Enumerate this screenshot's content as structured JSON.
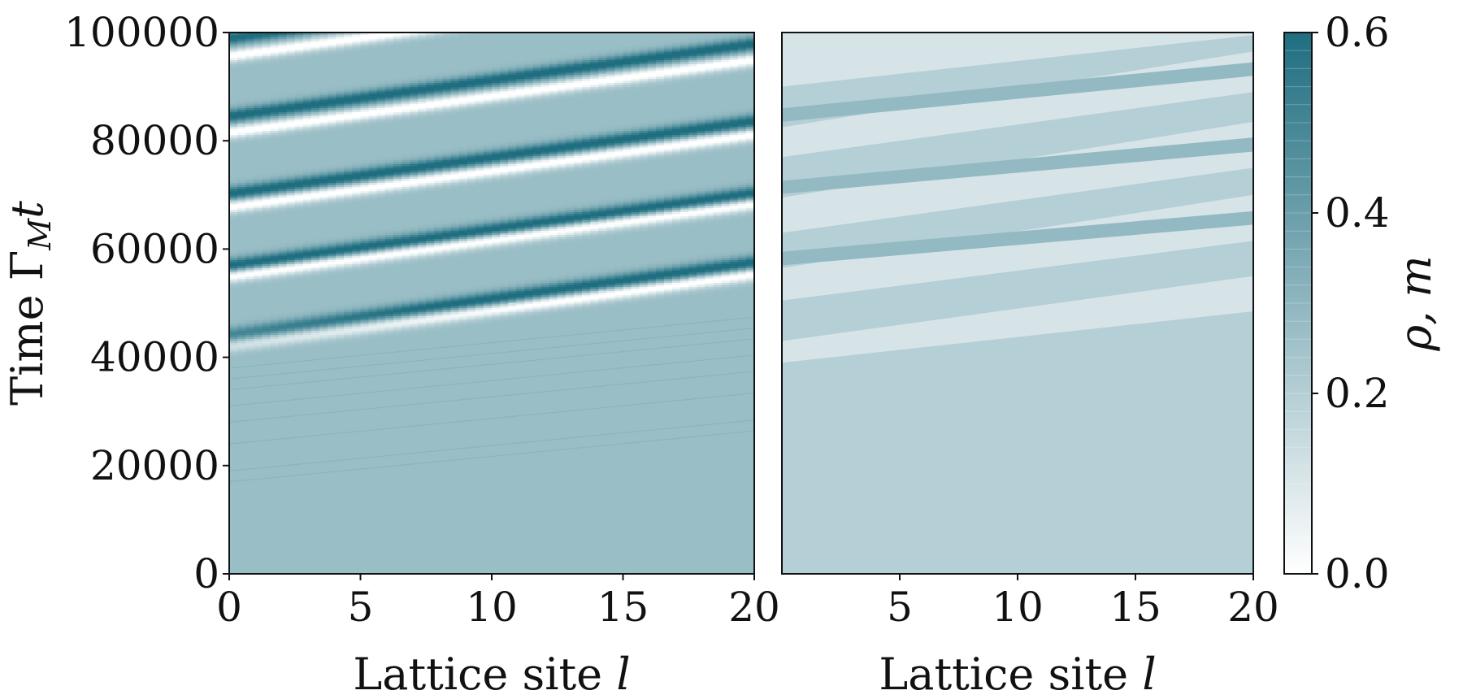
{
  "chart_data": [
    {
      "type": "heatmap",
      "panel": "left",
      "xlabel": "Lattice site l",
      "ylabel": "Time Γ_M t",
      "xlim": [
        0,
        20
      ],
      "ylim": [
        0,
        100000
      ],
      "x_ticks": [
        "0",
        "5",
        "10",
        "15",
        "20"
      ],
      "y_ticks": [
        "0",
        "20000",
        "40000",
        "60000",
        "80000",
        "100000"
      ],
      "baseline_value": 0.27,
      "onset_time": 40000,
      "stripe_slope_per_site": 670,
      "high_stripes_t_at_l0": [
        44200,
        57000,
        70300,
        84600,
        99000
      ],
      "low_stripes_t_at_l0": [
        42000,
        55000,
        67800,
        81600,
        95700
      ],
      "peak_value": 0.6,
      "min_value": 0.0
    },
    {
      "type": "heatmap",
      "panel": "right",
      "xlabel": "Lattice site l",
      "xlim": [
        0,
        20
      ],
      "ylim": [
        0,
        100000
      ],
      "x_ticks": [
        "5",
        "10",
        "15",
        "20"
      ],
      "levels": [
        0.0,
        0.1,
        0.2,
        0.3
      ],
      "baseline_value": 0.2,
      "bands": [
        {
          "level": 0.1,
          "t_l0": [
            39000,
            43000
          ],
          "t_l20": [
            48500,
            55000
          ]
        },
        {
          "level": 0.1,
          "t_l0": [
            50500,
            56500
          ],
          "t_l20": [
            61500,
            70000
          ]
        },
        {
          "level": 0.1,
          "t_l0": [
            63000,
            69500
          ],
          "t_l20": [
            75000,
            83500
          ]
        },
        {
          "level": 0.1,
          "t_l0": [
            77000,
            82500
          ],
          "t_l20": [
            89000,
            96500
          ]
        },
        {
          "level": 0.1,
          "t_l0": [
            90000,
            100000
          ],
          "t_l20": [
            99500,
            100000
          ]
        },
        {
          "level": 0.3,
          "t_l0": [
            57000,
            59500
          ],
          "t_l20": [
            64500,
            67000
          ]
        },
        {
          "level": 0.3,
          "t_l0": [
            70200,
            72600
          ],
          "t_l20": [
            78000,
            80600
          ]
        },
        {
          "level": 0.3,
          "t_l0": [
            83500,
            86000
          ],
          "t_l20": [
            92000,
            94500
          ]
        }
      ]
    }
  ],
  "colorbar": {
    "label": "ρ, m",
    "ticks": [
      "0.0",
      "0.2",
      "0.4",
      "0.6"
    ],
    "range": [
      0.0,
      0.6
    ],
    "color_min": "#ffffff",
    "color_max": "#1f6e80"
  },
  "figure": {
    "ylabel_main": "Time Γ",
    "ylabel_sub": "M",
    "ylabel_tail": "t",
    "xlabel_main": "Lattice site ",
    "xlabel_var": "l",
    "colorbar_label": "ρ, m"
  }
}
